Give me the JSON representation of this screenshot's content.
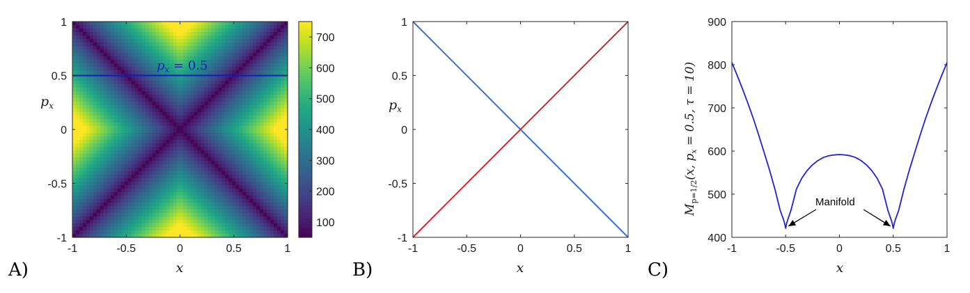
{
  "panels": [
    {
      "label": "A)"
    },
    {
      "label": "B)"
    },
    {
      "label": "C)"
    }
  ],
  "chart_data": [
    {
      "type": "heatmap",
      "panel": "A)",
      "xlabel": "x",
      "ylabel": "p",
      "ylabel_sub": "x",
      "xlim": [
        -1,
        1
      ],
      "ylim": [
        -1,
        1
      ],
      "xticks": [
        "-1",
        "-0.5",
        "0",
        "0.5",
        "1"
      ],
      "yticks": [
        "-1",
        "-0.5",
        "0",
        "0.5",
        "1"
      ],
      "colormap": "viridis",
      "clim": [
        50,
        750
      ],
      "colorbar_ticks": [
        "100",
        "200",
        "300",
        "400",
        "500",
        "600",
        "700"
      ],
      "colorbar_tick_values": [
        100,
        200,
        300,
        400,
        500,
        600,
        700
      ],
      "field": "minimum at (0,0); dark valleys along p_x = x and p_x = -x",
      "line": {
        "y": 0.5,
        "color": "#0a20b8"
      },
      "line_label_main": "p",
      "line_label_sub": "x",
      "line_label_rest": " = 0.5"
    },
    {
      "type": "line",
      "panel": "B)",
      "xlabel": "x",
      "ylabel": "p",
      "ylabel_sub": "x",
      "xlim": [
        -1,
        1
      ],
      "ylim": [
        -1,
        1
      ],
      "xticks": [
        "-1",
        "-0.5",
        "0",
        "0.5",
        "1"
      ],
      "yticks": [
        "-1",
        "-0.5",
        "0",
        "0.5",
        "1"
      ],
      "series": [
        {
          "color": "#3a6ed8",
          "x": [
            -1,
            1
          ],
          "y": [
            1,
            -1
          ]
        },
        {
          "color": "#cc2a2a",
          "x": [
            -1,
            1
          ],
          "y": [
            -1,
            1
          ]
        }
      ]
    },
    {
      "type": "line",
      "panel": "C)",
      "xlabel": "x",
      "ylabel": "M",
      "ylabel_sub": "p=1/2",
      "ylabel_rest": "(x, p",
      "ylabel_rest_sub": "x",
      "ylabel_rest2": " = 0.5, τ = 10)",
      "xlim": [
        -1,
        1
      ],
      "ylim": [
        400,
        900
      ],
      "xticks": [
        "-1",
        "-0.5",
        "0",
        "0.5",
        "1"
      ],
      "yticks": [
        "400",
        "500",
        "600",
        "700",
        "800",
        "900"
      ],
      "series": [
        {
          "color": "#1f1fdc",
          "x": [
            -1,
            -0.95,
            -0.9,
            -0.85,
            -0.8,
            -0.75,
            -0.7,
            -0.65,
            -0.6,
            -0.55,
            -0.52,
            -0.51,
            -0.5,
            -0.49,
            -0.48,
            -0.45,
            -0.4,
            -0.35,
            -0.3,
            -0.25,
            -0.2,
            -0.15,
            -0.1,
            -0.05,
            0,
            0.05,
            0.1,
            0.15,
            0.2,
            0.25,
            0.3,
            0.35,
            0.4,
            0.45,
            0.48,
            0.49,
            0.5,
            0.51,
            0.52,
            0.55,
            0.6,
            0.65,
            0.7,
            0.75,
            0.8,
            0.85,
            0.9,
            0.95,
            1
          ],
          "y": [
            805,
            775,
            743,
            710,
            675,
            637,
            597,
            556,
            512,
            462,
            441,
            433,
            421,
            433,
            441,
            463,
            512,
            537,
            555,
            568,
            578,
            585,
            589,
            591,
            592,
            591,
            589,
            585,
            578,
            568,
            555,
            537,
            512,
            463,
            441,
            433,
            421,
            433,
            441,
            462,
            512,
            556,
            597,
            637,
            675,
            710,
            743,
            775,
            805
          ]
        }
      ],
      "annotations": [
        {
          "text": "Manifold",
          "points_to": [
            [
              -0.5,
              421
            ],
            [
              0.5,
              421
            ]
          ]
        }
      ]
    }
  ]
}
